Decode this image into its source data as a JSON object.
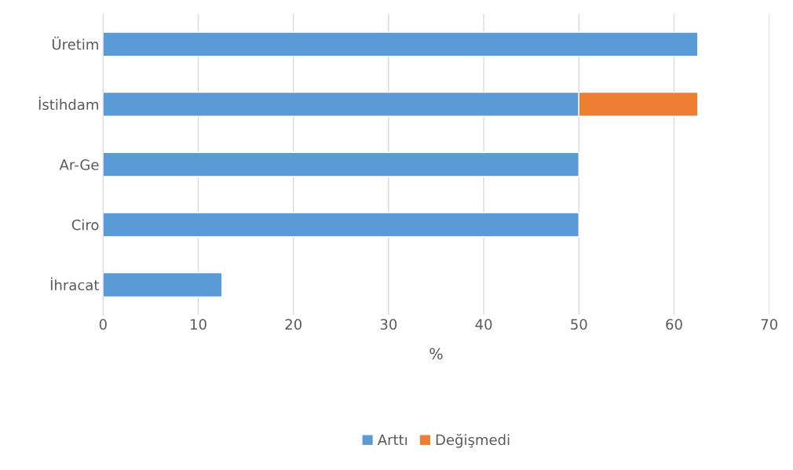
{
  "chart_data": {
    "type": "bar",
    "orientation": "horizontal",
    "stacked": true,
    "categories": [
      "Üretim",
      "İstihdam",
      "Ar-Ge",
      "Ciro",
      "İhracat"
    ],
    "series": [
      {
        "name": "Arttı",
        "color": "#5b9bd5",
        "values": [
          62.5,
          50,
          50,
          50,
          12.5
        ]
      },
      {
        "name": "Değişmedi",
        "color": "#ed7d31",
        "values": [
          null,
          12.5,
          null,
          null,
          null
        ]
      }
    ],
    "xlabel": "%",
    "xlim": [
      0,
      70
    ],
    "xticks": [
      0,
      10,
      20,
      30,
      40,
      50,
      60,
      70
    ],
    "grid": "x",
    "legend": "bottom"
  }
}
